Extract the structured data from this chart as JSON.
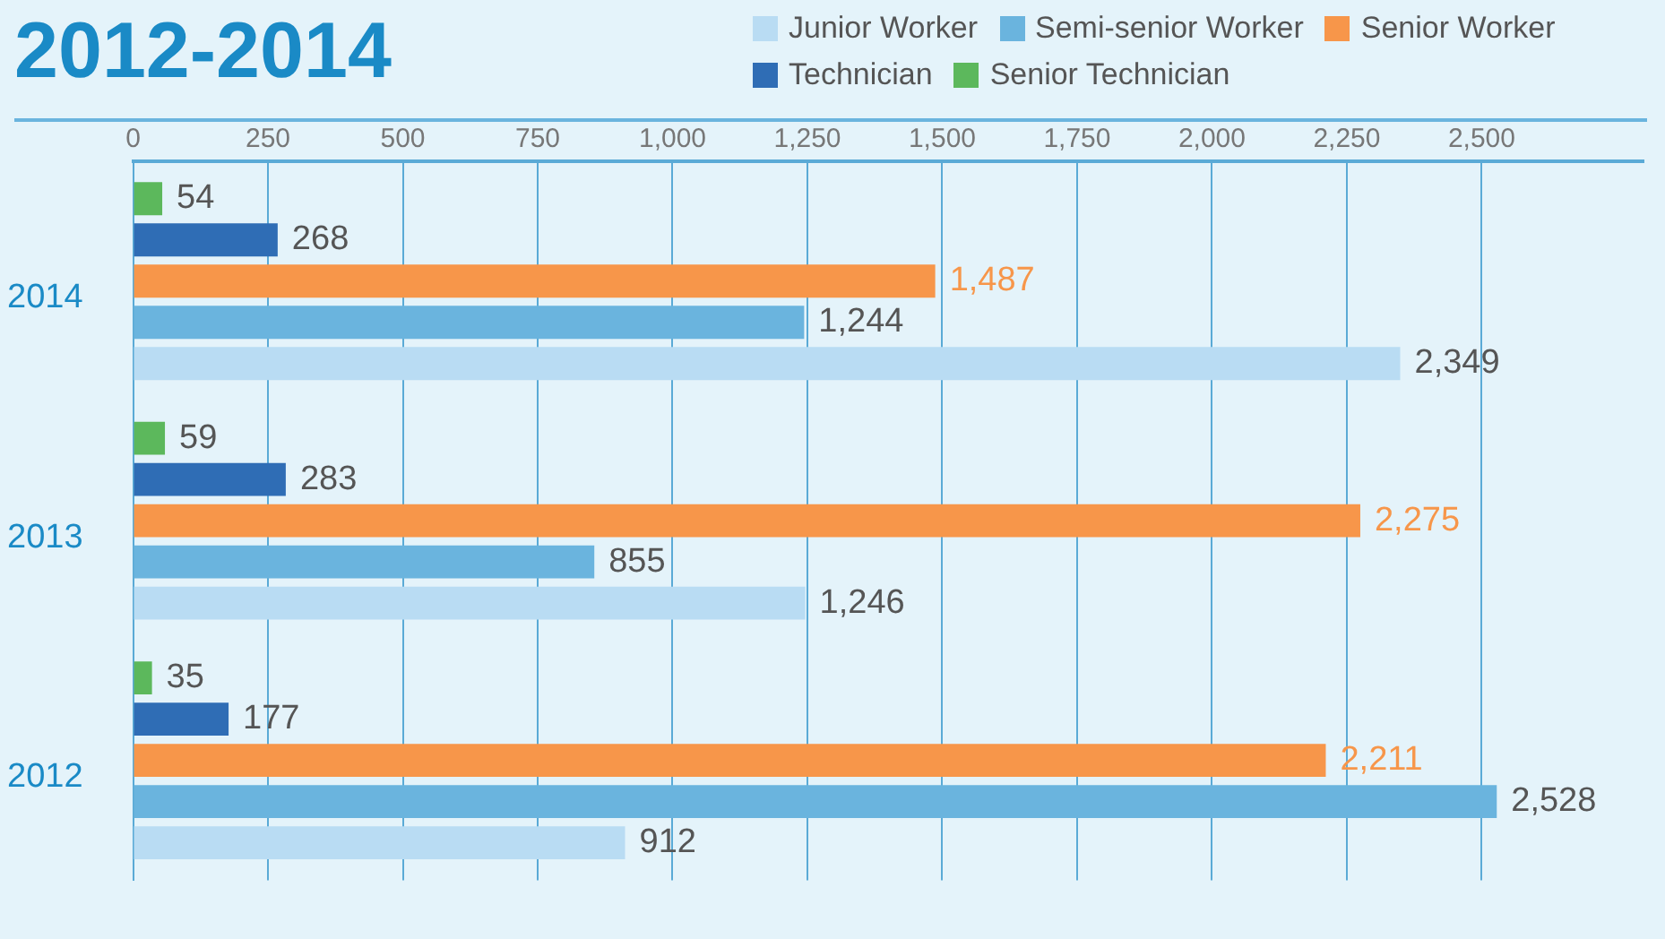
{
  "chart_data": {
    "type": "bar",
    "title": "2012-2014",
    "orientation": "horizontal",
    "categories": [
      "2014",
      "2013",
      "2012"
    ],
    "series": [
      {
        "name": "Senior Technician",
        "color": "#5cb85c",
        "values": [
          54,
          59,
          35
        ],
        "value_labels": [
          "54",
          "59",
          "35"
        ]
      },
      {
        "name": "Technician",
        "color": "#2f6db5",
        "values": [
          268,
          283,
          177
        ],
        "value_labels": [
          "268",
          "283",
          "177"
        ]
      },
      {
        "name": "Senior Worker",
        "color": "#f7964a",
        "values": [
          1487,
          2275,
          2211
        ],
        "value_labels": [
          "1,487",
          "2,275",
          "2,211"
        ]
      },
      {
        "name": "Semi-senior Worker",
        "color": "#6ab4de",
        "values": [
          1244,
          855,
          2528
        ],
        "value_labels": [
          "1,244",
          "855",
          "2,528"
        ]
      },
      {
        "name": "Junior Worker",
        "color": "#b9dcf3",
        "values": [
          2349,
          1246,
          912
        ],
        "value_labels": [
          "2,349",
          "1,246",
          "912"
        ]
      }
    ],
    "xlim": [
      0,
      2800
    ],
    "xticks": [
      0,
      {
        "value": 250,
        "label": "250"
      },
      {
        "value": 500,
        "label": "500"
      },
      {
        "value": 750,
        "label": "750"
      },
      {
        "value": 1000,
        "label": "1,000"
      },
      {
        "value": 1250,
        "label": "1,250"
      },
      {
        "value": 1500,
        "label": "1,500"
      },
      {
        "value": 1750,
        "label": "1,750"
      },
      {
        "value": 2000,
        "label": "2,000"
      },
      {
        "value": 2250,
        "label": "2,250"
      },
      {
        "value": 2500,
        "label": "2,500"
      }
    ],
    "grid": "x",
    "legend": "top right"
  }
}
